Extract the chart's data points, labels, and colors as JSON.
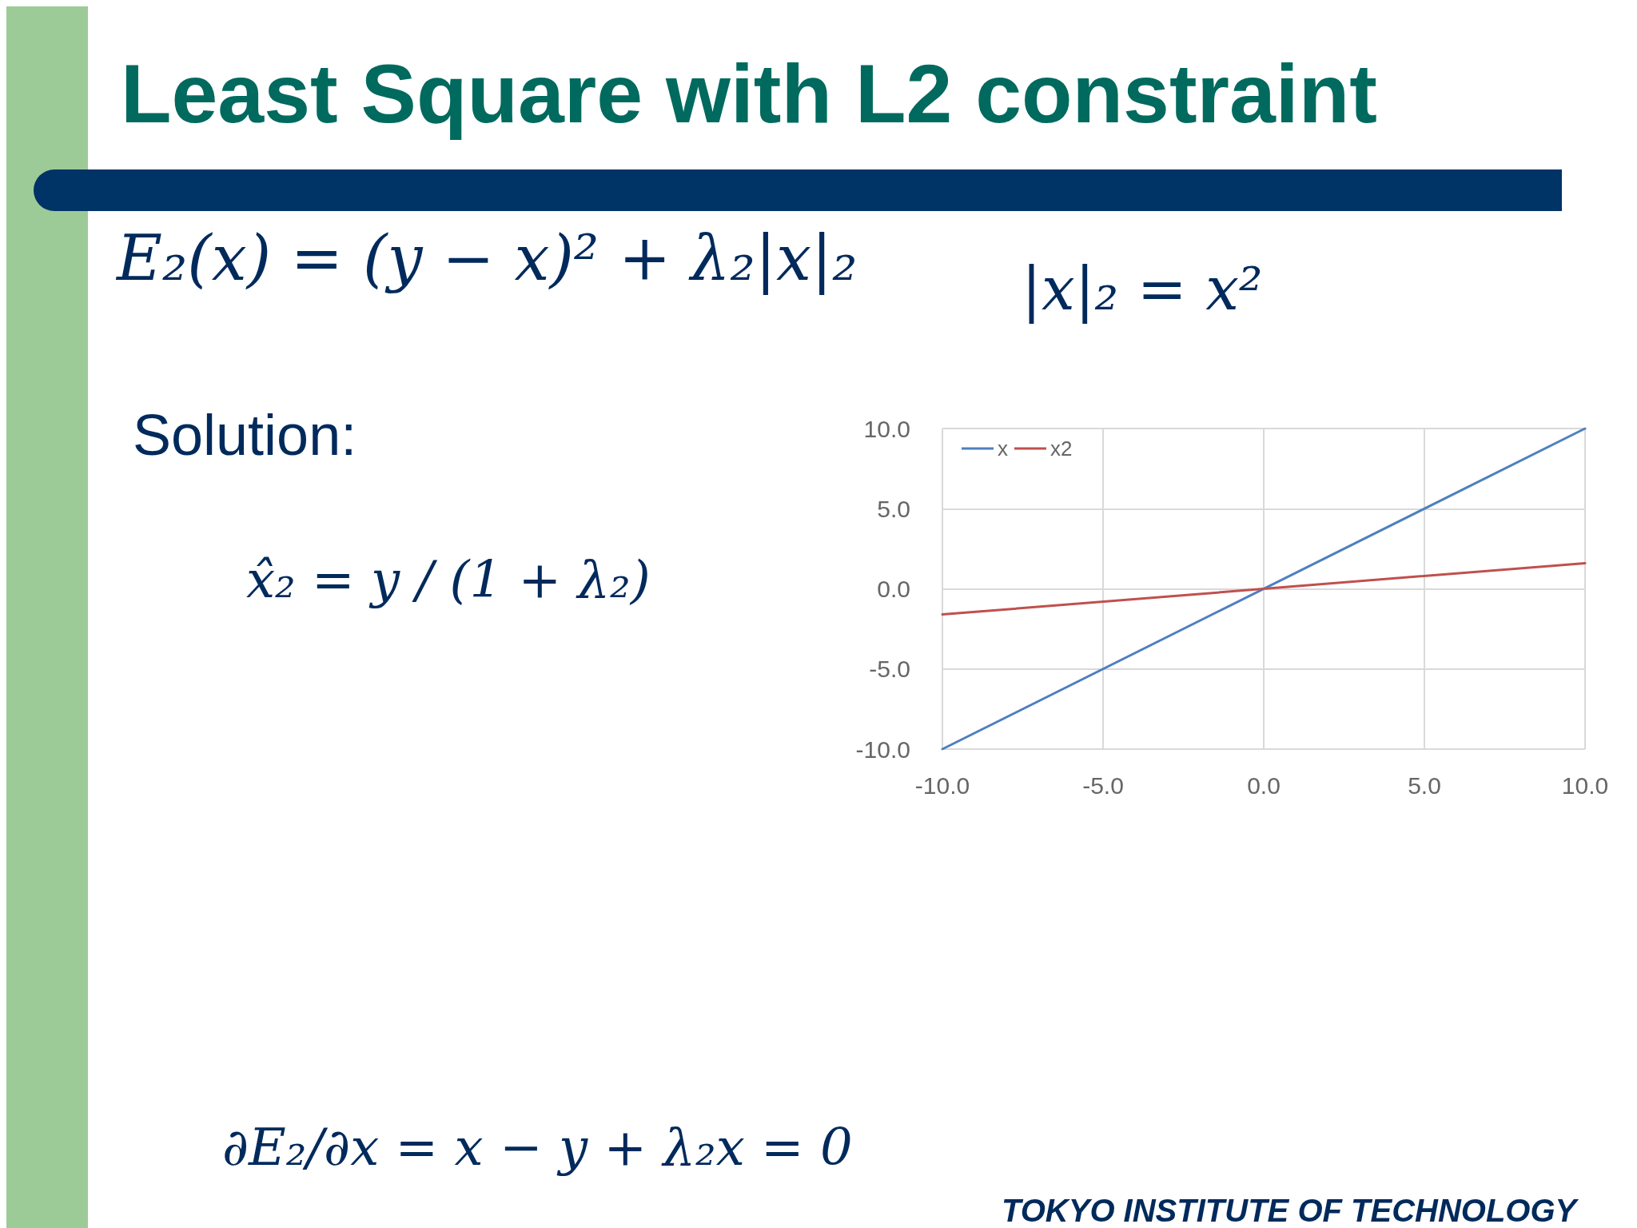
{
  "chart_data": {
    "type": "line",
    "title": "Least Square with L2 constraint",
    "annotations": [
      "E₂(x) = (y − x)² + λ₂|x|₂",
      "|x|₂ = x²",
      "Solution:",
      "x̂₂ = y / (1 + λ₂)",
      "∂E₂/∂x = x − y + λ₂x = 0",
      "TOKYO INSTITUTE OF TECHNOLOGY"
    ],
    "x": [
      -10,
      10
    ],
    "series": [
      {
        "name": "x",
        "color": "#4f7fbf",
        "values": [
          -10,
          10
        ]
      },
      {
        "name": "x2",
        "color": "#c0504d",
        "values": [
          -1.6,
          1.6
        ]
      }
    ],
    "xlim": [
      -10,
      10
    ],
    "ylim": [
      -10,
      10
    ],
    "xticks": [
      {
        "value": -10,
        "label": "-10.0"
      },
      {
        "value": -5,
        "label": "-5.0"
      },
      {
        "value": 0,
        "label": "0.0"
      },
      {
        "value": 5,
        "label": "5.0"
      },
      {
        "value": 10,
        "label": "10.0"
      }
    ],
    "yticks": [
      {
        "value": -10,
        "label": "-10.0"
      },
      {
        "value": -5,
        "label": "-5.0"
      },
      {
        "value": 0,
        "label": "0.0"
      },
      {
        "value": 5,
        "label": "5.0"
      },
      {
        "value": 10,
        "label": "10.0"
      }
    ],
    "grid": true,
    "legend": "top left",
    "marker": "none",
    "line_style": "solid"
  }
}
